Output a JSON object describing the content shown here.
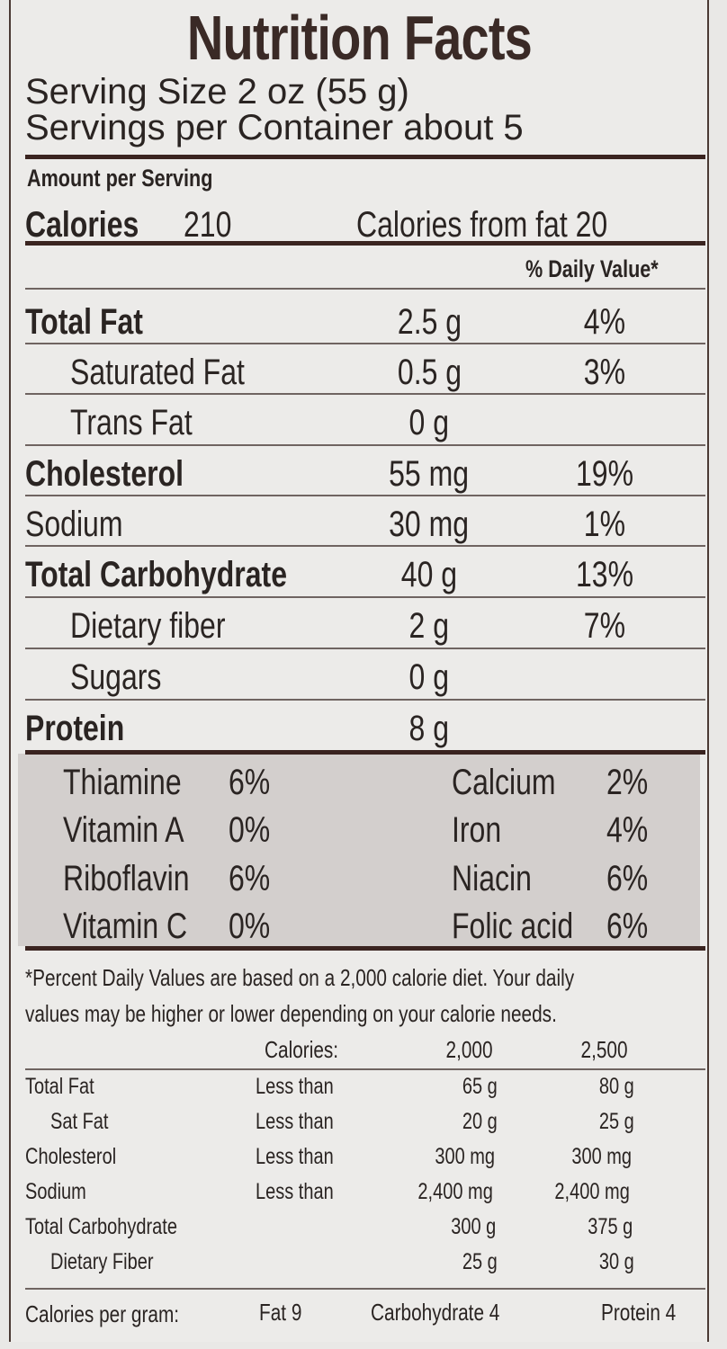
{
  "title": "Nutrition Facts",
  "serving_size": "Serving Size 2 oz (55 g)",
  "servings_per_container": "Servings per Container about 5",
  "amount_per_serving": "Amount per Serving",
  "calories_label": "Calories",
  "calories_value": "210",
  "calories_from_fat": "Calories from fat  20",
  "daily_value_header": "% Daily Value*",
  "nutrients": [
    {
      "name": "Total Fat",
      "amount": "2.5 g",
      "dv": "4%"
    },
    {
      "name": "Saturated Fat",
      "amount": "0.5 g",
      "dv": "3%"
    },
    {
      "name": "Trans Fat",
      "amount": "0 g",
      "dv": ""
    },
    {
      "name": "Cholesterol",
      "amount": "55 mg",
      "dv": "19%"
    },
    {
      "name": "Sodium",
      "amount": "30 mg",
      "dv": "1%"
    },
    {
      "name": "Total Carbohydrate",
      "amount": "40 g",
      "dv": "13%"
    },
    {
      "name": "Dietary fiber",
      "amount": "2 g",
      "dv": "7%"
    },
    {
      "name": "Sugars",
      "amount": "0 g",
      "dv": ""
    },
    {
      "name": "Protein",
      "amount": "8 g",
      "dv": ""
    }
  ],
  "vitamins": [
    {
      "name": "Thiamine",
      "value": "6%"
    },
    {
      "name": "Vitamin A",
      "value": "0%"
    },
    {
      "name": "Riboflavin",
      "value": "6%"
    },
    {
      "name": "Vitamin C",
      "value": "0%"
    },
    {
      "name": "Calcium",
      "value": "2%"
    },
    {
      "name": "Iron",
      "value": "4%"
    },
    {
      "name": "Niacin",
      "value": "6%"
    },
    {
      "name": "Folic acid",
      "value": "6%"
    }
  ],
  "footnote_line1": "*Percent Daily Values are based on a 2,000 calorie diet. Your daily",
  "footnote_line2": "values may be higher or lower depending on your calorie needs.",
  "dv_table": {
    "header": {
      "label": "Calories:",
      "col1": "2,000",
      "col2": "2,500"
    },
    "rows": [
      {
        "name": "Total Fat",
        "limit": "Less than",
        "col1": "65 g",
        "col2": "80 g"
      },
      {
        "name": "Sat Fat",
        "limit": "Less than",
        "col1": "20 g",
        "col2": "25 g"
      },
      {
        "name": "Cholesterol",
        "limit": "Less than",
        "col1": "300 mg",
        "col2": "300 mg"
      },
      {
        "name": "Sodium",
        "limit": "Less than",
        "col1": "2,400 mg",
        "col2": "2,400 mg"
      },
      {
        "name": "Total Carbohydrate",
        "limit": "",
        "col1": "300 g",
        "col2": "375 g"
      },
      {
        "name": "Dietary Fiber",
        "limit": "",
        "col1": "25 g",
        "col2": "30 g"
      }
    ]
  },
  "calories_per_gram": {
    "label": "Calories per gram:",
    "fat": "Fat 9",
    "carbohydrate": "Carbohydrate 4",
    "protein": "Protein 4"
  }
}
